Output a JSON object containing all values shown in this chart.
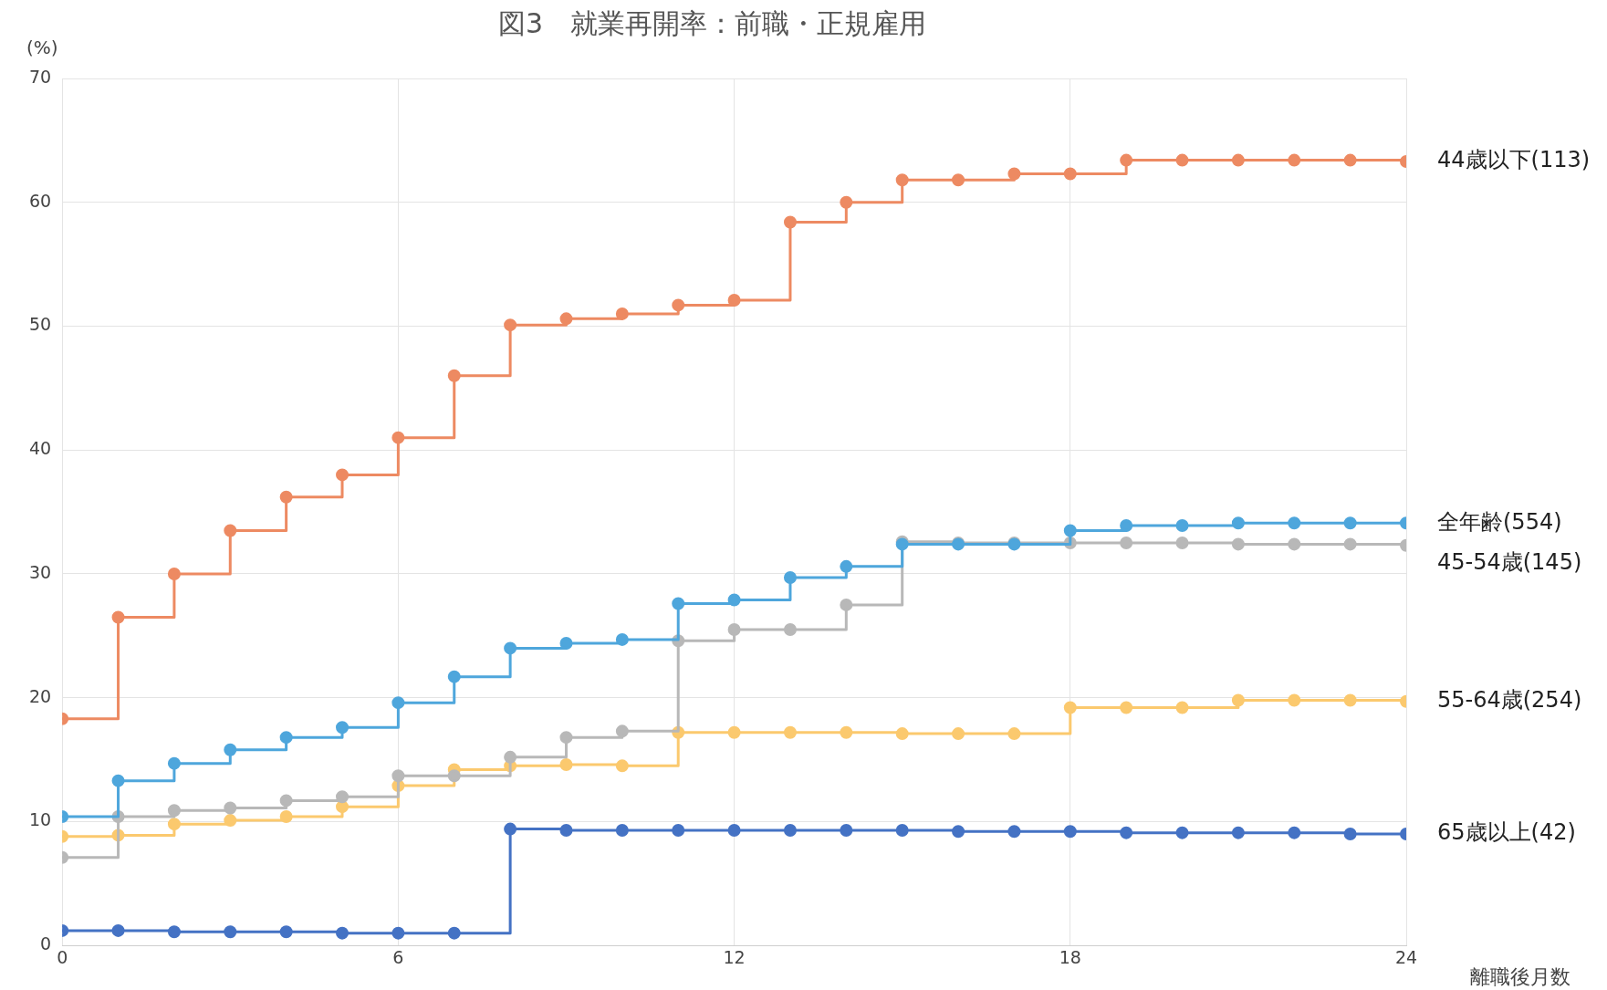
{
  "chart_data": {
    "type": "step",
    "title": "図3　就業再開率：前職・正規雇用",
    "ylabel": "(%)",
    "xlabel": "離職後月数",
    "x": [
      0,
      1,
      2,
      3,
      4,
      5,
      6,
      7,
      8,
      9,
      10,
      11,
      12,
      13,
      14,
      15,
      16,
      17,
      18,
      19,
      20,
      21,
      22,
      23,
      24
    ],
    "series": [
      {
        "name": "44歳以下(113)",
        "color": "#ed8a62",
        "values": [
          18.3,
          26.5,
          30.0,
          33.5,
          36.2,
          38.0,
          41.0,
          46.0,
          50.1,
          50.6,
          51.0,
          51.7,
          52.1,
          58.4,
          60.0,
          61.8,
          61.8,
          62.3,
          62.3,
          63.4,
          63.4,
          63.4,
          63.4,
          63.4,
          63.3
        ]
      },
      {
        "name": "全年齢(554)",
        "color": "#4ea6dc",
        "values": [
          10.4,
          13.3,
          14.7,
          15.8,
          16.8,
          17.6,
          19.6,
          21.7,
          24.0,
          24.4,
          24.7,
          27.6,
          27.9,
          29.7,
          30.6,
          32.4,
          32.4,
          32.4,
          33.5,
          33.9,
          33.9,
          34.1,
          34.1,
          34.1,
          34.1
        ]
      },
      {
        "name": "45-54歳(145)",
        "color": "#b8b8b8",
        "values": [
          7.1,
          10.4,
          10.9,
          11.1,
          11.7,
          12.0,
          13.7,
          13.7,
          15.2,
          16.8,
          17.3,
          24.6,
          25.5,
          25.5,
          27.5,
          32.6,
          32.5,
          32.5,
          32.5,
          32.5,
          32.5,
          32.4,
          32.4,
          32.4,
          32.3
        ]
      },
      {
        "name": "55-64歳(254)",
        "color": "#fbc96e",
        "values": [
          8.8,
          8.9,
          9.8,
          10.1,
          10.4,
          11.2,
          12.9,
          14.2,
          14.5,
          14.6,
          14.5,
          17.2,
          17.2,
          17.2,
          17.2,
          17.1,
          17.1,
          17.1,
          19.2,
          19.2,
          19.2,
          19.8,
          19.8,
          19.8,
          19.7
        ]
      },
      {
        "name": "65歳以上(42)",
        "color": "#4472c4",
        "values": [
          1.2,
          1.2,
          1.1,
          1.1,
          1.1,
          1.0,
          1.0,
          1.0,
          9.4,
          9.3,
          9.3,
          9.3,
          9.3,
          9.3,
          9.3,
          9.3,
          9.2,
          9.2,
          9.2,
          9.1,
          9.1,
          9.1,
          9.1,
          9.0,
          9.0
        ]
      }
    ],
    "xlim": [
      0,
      24
    ],
    "xticks": [
      0,
      6,
      12,
      18,
      24
    ],
    "ylim": [
      0,
      70
    ],
    "yticks": [
      0,
      10,
      20,
      30,
      40,
      50,
      60,
      70
    ],
    "grid": true,
    "legend": false,
    "marker": "circle",
    "line_style": "solid"
  }
}
